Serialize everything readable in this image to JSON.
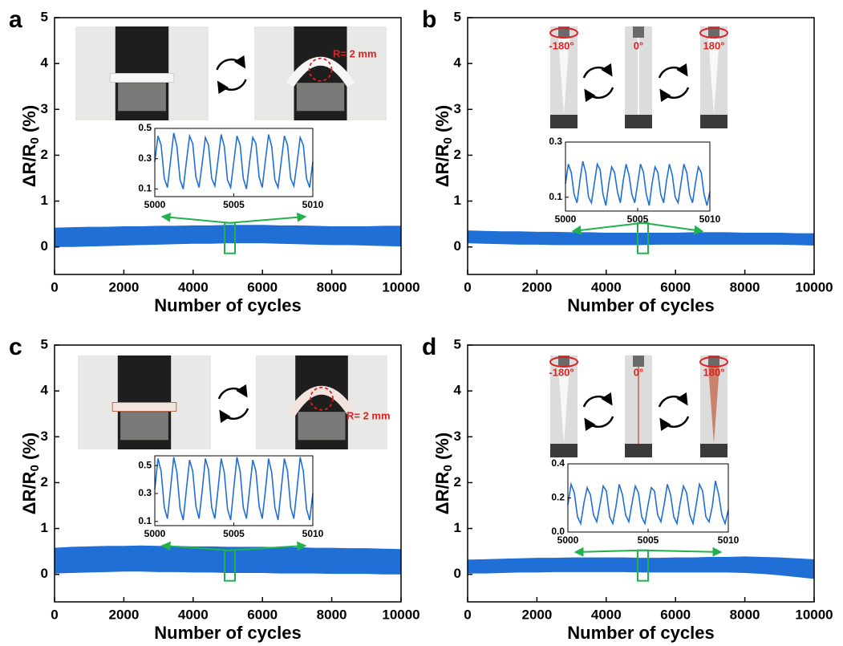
{
  "chart_data": [
    {
      "type": "band",
      "panel": "a",
      "xlabel": "Number of cycles",
      "ylabel": [
        "ΔR/R",
        "0",
        " (%)"
      ],
      "color": "#1f6fd6",
      "x": [
        0,
        500,
        1000,
        1500,
        2000,
        2500,
        3000,
        3500,
        4000,
        4500,
        5000,
        5500,
        6000,
        6500,
        7000,
        7500,
        8000,
        8500,
        9000,
        9500,
        10000
      ],
      "upper": [
        0.42,
        0.43,
        0.44,
        0.44,
        0.45,
        0.45,
        0.46,
        0.46,
        0.47,
        0.47,
        0.48,
        0.48,
        0.48,
        0.47,
        0.47,
        0.46,
        0.45,
        0.45,
        0.45,
        0.46,
        0.46
      ],
      "lower": [
        0.0,
        0.0,
        0.01,
        0.02,
        0.03,
        0.04,
        0.05,
        0.06,
        0.07,
        0.07,
        0.08,
        0.08,
        0.08,
        0.07,
        0.06,
        0.05,
        0.04,
        0.04,
        0.03,
        0.02,
        0.01
      ],
      "xlim": [
        0,
        10000
      ],
      "ylim": [
        -0.6,
        5
      ],
      "xticks": [
        0,
        2000,
        4000,
        6000,
        8000,
        10000
      ],
      "yticks": [
        0,
        1,
        2,
        3,
        4,
        5
      ],
      "annotations": [
        "R= 2 mm"
      ],
      "inset": {
        "type": "line",
        "color": "#1f6fd6",
        "xlim": [
          5000,
          5010
        ],
        "ylim": [
          0.05,
          0.5
        ],
        "xticks": [
          5000,
          5005,
          5010
        ],
        "yticks": [
          0.1,
          0.3,
          0.5
        ],
        "x": [
          5000,
          5000.2,
          5000.4,
          5000.6,
          5000.8,
          5001,
          5001.2,
          5001.4,
          5001.6,
          5001.8,
          5002,
          5002.2,
          5002.4,
          5002.6,
          5002.8,
          5003,
          5003.2,
          5003.4,
          5003.6,
          5003.8,
          5004,
          5004.2,
          5004.4,
          5004.6,
          5004.8,
          5005,
          5005.2,
          5005.4,
          5005.6,
          5005.8,
          5006,
          5006.2,
          5006.4,
          5006.6,
          5006.8,
          5007,
          5007.2,
          5007.4,
          5007.6,
          5007.8,
          5008,
          5008.2,
          5008.4,
          5008.6,
          5008.8,
          5009,
          5009.2,
          5009.4,
          5009.6,
          5009.8,
          5010
        ],
        "values": [
          0.28,
          0.45,
          0.39,
          0.17,
          0.11,
          0.29,
          0.47,
          0.38,
          0.16,
          0.1,
          0.28,
          0.45,
          0.4,
          0.18,
          0.11,
          0.27,
          0.44,
          0.39,
          0.17,
          0.12,
          0.29,
          0.46,
          0.38,
          0.16,
          0.11,
          0.28,
          0.45,
          0.39,
          0.17,
          0.1,
          0.28,
          0.44,
          0.4,
          0.18,
          0.11,
          0.29,
          0.46,
          0.38,
          0.16,
          0.11,
          0.28,
          0.45,
          0.39,
          0.17,
          0.12,
          0.27,
          0.44,
          0.39,
          0.17,
          0.11,
          0.28
        ]
      }
    },
    {
      "type": "band",
      "panel": "b",
      "xlabel": "Number of cycles",
      "ylabel": [
        "ΔR/R",
        "0",
        " (%)"
      ],
      "color": "#1f6fd6",
      "x": [
        0,
        500,
        1000,
        1500,
        2000,
        2500,
        3000,
        3500,
        4000,
        4500,
        5000,
        5500,
        6000,
        6500,
        7000,
        7500,
        8000,
        8500,
        9000,
        9500,
        10000
      ],
      "upper": [
        0.36,
        0.35,
        0.34,
        0.34,
        0.33,
        0.33,
        0.32,
        0.32,
        0.31,
        0.31,
        0.31,
        0.31,
        0.31,
        0.32,
        0.32,
        0.32,
        0.31,
        0.31,
        0.31,
        0.3,
        0.3
      ],
      "lower": [
        0.08,
        0.07,
        0.06,
        0.05,
        0.05,
        0.04,
        0.04,
        0.04,
        0.04,
        0.04,
        0.04,
        0.05,
        0.05,
        0.05,
        0.05,
        0.05,
        0.05,
        0.05,
        0.05,
        0.04,
        0.03
      ],
      "xlim": [
        0,
        10000
      ],
      "ylim": [
        -0.6,
        5
      ],
      "xticks": [
        0,
        2000,
        4000,
        6000,
        8000,
        10000
      ],
      "yticks": [
        0,
        1,
        2,
        3,
        4,
        5
      ],
      "annotations": [
        "-180°",
        "0°",
        "180°"
      ],
      "inset": {
        "type": "line",
        "color": "#1f6fd6",
        "xlim": [
          5000,
          5010
        ],
        "ylim": [
          0.05,
          0.3
        ],
        "xticks": [
          5000,
          5005,
          5010
        ],
        "yticks": [
          0.1,
          0.3
        ],
        "x": [
          5000,
          5000.2,
          5000.4,
          5000.6,
          5000.8,
          5001,
          5001.2,
          5001.4,
          5001.6,
          5001.8,
          5002,
          5002.2,
          5002.4,
          5002.6,
          5002.8,
          5003,
          5003.2,
          5003.4,
          5003.6,
          5003.8,
          5004,
          5004.2,
          5004.4,
          5004.6,
          5004.8,
          5005,
          5005.2,
          5005.4,
          5005.6,
          5005.8,
          5006,
          5006.2,
          5006.4,
          5006.6,
          5006.8,
          5007,
          5007.2,
          5007.4,
          5007.6,
          5007.8,
          5008,
          5008.2,
          5008.4,
          5008.6,
          5008.8,
          5009,
          5009.2,
          5009.4,
          5009.6,
          5009.8,
          5010
        ],
        "values": [
          0.15,
          0.22,
          0.19,
          0.11,
          0.08,
          0.16,
          0.23,
          0.19,
          0.1,
          0.08,
          0.15,
          0.22,
          0.2,
          0.11,
          0.07,
          0.15,
          0.21,
          0.19,
          0.12,
          0.08,
          0.16,
          0.22,
          0.18,
          0.11,
          0.08,
          0.15,
          0.22,
          0.19,
          0.11,
          0.07,
          0.15,
          0.21,
          0.19,
          0.11,
          0.08,
          0.16,
          0.22,
          0.18,
          0.1,
          0.08,
          0.15,
          0.22,
          0.19,
          0.11,
          0.08,
          0.15,
          0.21,
          0.19,
          0.11,
          0.07,
          0.12
        ]
      }
    },
    {
      "type": "band",
      "panel": "c",
      "xlabel": "Number of cycles",
      "ylabel": [
        "ΔR/R",
        "0",
        " (%)"
      ],
      "color": "#1f6fd6",
      "x": [
        0,
        500,
        1000,
        1500,
        2000,
        2500,
        3000,
        3500,
        4000,
        4500,
        5000,
        5500,
        6000,
        6500,
        7000,
        7500,
        8000,
        8500,
        9000,
        9500,
        10000
      ],
      "upper": [
        0.58,
        0.6,
        0.61,
        0.62,
        0.62,
        0.63,
        0.62,
        0.62,
        0.61,
        0.61,
        0.6,
        0.6,
        0.6,
        0.59,
        0.59,
        0.58,
        0.58,
        0.57,
        0.57,
        0.56,
        0.55
      ],
      "lower": [
        0.02,
        0.03,
        0.04,
        0.05,
        0.06,
        0.06,
        0.05,
        0.05,
        0.04,
        0.04,
        0.03,
        0.03,
        0.03,
        0.02,
        0.02,
        0.02,
        0.01,
        0.01,
        0.01,
        0.0,
        0.0
      ],
      "xlim": [
        0,
        10000
      ],
      "ylim": [
        -0.6,
        5
      ],
      "xticks": [
        0,
        2000,
        4000,
        6000,
        8000,
        10000
      ],
      "yticks": [
        0,
        1,
        2,
        3,
        4,
        5
      ],
      "annotations": [
        "R= 2 mm"
      ],
      "inset": {
        "type": "line",
        "color": "#1f6fd6",
        "xlim": [
          5000,
          5010
        ],
        "ylim": [
          0.07,
          0.57
        ],
        "xticks": [
          5000,
          5005,
          5010
        ],
        "yticks": [
          0.1,
          0.3,
          0.5
        ],
        "x": [
          5000,
          5000.2,
          5000.4,
          5000.6,
          5000.8,
          5001,
          5001.2,
          5001.4,
          5001.6,
          5001.8,
          5002,
          5002.2,
          5002.4,
          5002.6,
          5002.8,
          5003,
          5003.2,
          5003.4,
          5003.6,
          5003.8,
          5004,
          5004.2,
          5004.4,
          5004.6,
          5004.8,
          5005,
          5005.2,
          5005.4,
          5005.6,
          5005.8,
          5006,
          5006.2,
          5006.4,
          5006.6,
          5006.8,
          5007,
          5007.2,
          5007.4,
          5007.6,
          5007.8,
          5008,
          5008.2,
          5008.4,
          5008.6,
          5008.8,
          5009,
          5009.2,
          5009.4,
          5009.6,
          5009.8,
          5010
        ],
        "values": [
          0.33,
          0.55,
          0.46,
          0.2,
          0.12,
          0.34,
          0.56,
          0.45,
          0.19,
          0.11,
          0.33,
          0.54,
          0.46,
          0.21,
          0.12,
          0.32,
          0.55,
          0.47,
          0.2,
          0.12,
          0.33,
          0.55,
          0.45,
          0.19,
          0.11,
          0.34,
          0.56,
          0.46,
          0.2,
          0.12,
          0.33,
          0.54,
          0.46,
          0.21,
          0.12,
          0.32,
          0.55,
          0.45,
          0.2,
          0.11,
          0.33,
          0.55,
          0.46,
          0.2,
          0.12,
          0.33,
          0.56,
          0.46,
          0.19,
          0.11,
          0.3
        ]
      }
    },
    {
      "type": "band",
      "panel": "d",
      "xlabel": "Number of cycles",
      "ylabel": [
        "ΔR/R",
        "0",
        " (%)"
      ],
      "color": "#1f6fd6",
      "x": [
        0,
        500,
        1000,
        1500,
        2000,
        2500,
        3000,
        3500,
        4000,
        4500,
        5000,
        5500,
        6000,
        6500,
        7000,
        7500,
        8000,
        8500,
        9000,
        9500,
        10000
      ],
      "upper": [
        0.32,
        0.33,
        0.34,
        0.35,
        0.36,
        0.36,
        0.37,
        0.37,
        0.37,
        0.37,
        0.36,
        0.36,
        0.37,
        0.37,
        0.38,
        0.38,
        0.39,
        0.38,
        0.37,
        0.35,
        0.33
      ],
      "lower": [
        0.02,
        0.02,
        0.03,
        0.04,
        0.04,
        0.05,
        0.05,
        0.05,
        0.05,
        0.05,
        0.04,
        0.04,
        0.04,
        0.04,
        0.04,
        0.04,
        0.03,
        0.01,
        -0.02,
        -0.06,
        -0.1
      ],
      "xlim": [
        0,
        10000
      ],
      "ylim": [
        -0.6,
        5
      ],
      "xticks": [
        0,
        2000,
        4000,
        6000,
        8000,
        10000
      ],
      "yticks": [
        0,
        1,
        2,
        3,
        4,
        5
      ],
      "annotations": [
        "-180°",
        "0°",
        "180°"
      ],
      "inset": {
        "type": "line",
        "color": "#1f6fd6",
        "xlim": [
          5000,
          5010
        ],
        "ylim": [
          0,
          0.4
        ],
        "xticks": [
          5000,
          5005,
          5010
        ],
        "yticks": [
          {
            "value": 0,
            "label": "0.0"
          },
          0.2,
          0.4
        ],
        "x": [
          5000,
          5000.2,
          5000.4,
          5000.6,
          5000.8,
          5001,
          5001.2,
          5001.4,
          5001.6,
          5001.8,
          5002,
          5002.2,
          5002.4,
          5002.6,
          5002.8,
          5003,
          5003.2,
          5003.4,
          5003.6,
          5003.8,
          5004,
          5004.2,
          5004.4,
          5004.6,
          5004.8,
          5005,
          5005.2,
          5005.4,
          5005.6,
          5005.8,
          5006,
          5006.2,
          5006.4,
          5006.6,
          5006.8,
          5007,
          5007.2,
          5007.4,
          5007.6,
          5007.8,
          5008,
          5008.2,
          5008.4,
          5008.6,
          5008.8,
          5009,
          5009.2,
          5009.4,
          5009.6,
          5009.8,
          5010
        ],
        "values": [
          0.16,
          0.28,
          0.23,
          0.09,
          0.05,
          0.17,
          0.26,
          0.22,
          0.1,
          0.06,
          0.16,
          0.27,
          0.24,
          0.09,
          0.05,
          0.15,
          0.28,
          0.22,
          0.1,
          0.06,
          0.17,
          0.27,
          0.23,
          0.09,
          0.05,
          0.16,
          0.26,
          0.24,
          0.1,
          0.06,
          0.16,
          0.28,
          0.22,
          0.09,
          0.05,
          0.17,
          0.27,
          0.23,
          0.1,
          0.05,
          0.16,
          0.28,
          0.24,
          0.09,
          0.06,
          0.15,
          0.3,
          0.22,
          0.1,
          0.05,
          0.13
        ]
      }
    }
  ]
}
